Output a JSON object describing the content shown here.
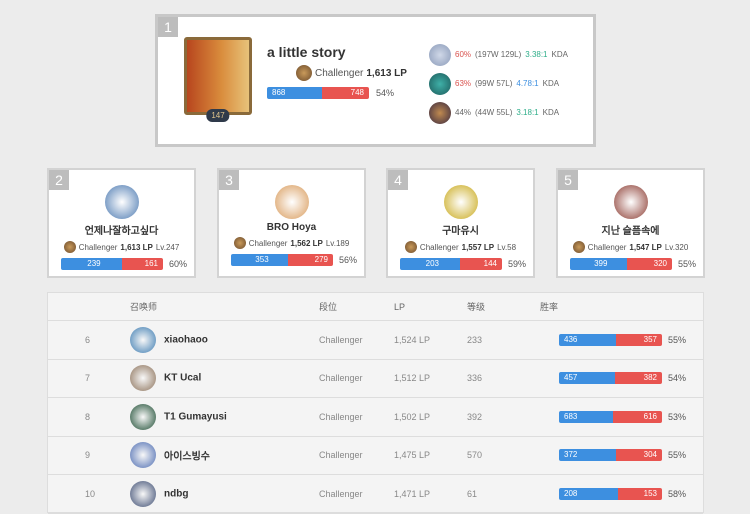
{
  "top_player": {
    "rank": "1",
    "name": "a little story",
    "level": "147",
    "tier": "Challenger",
    "lp": "1,613 LP",
    "wins": 868,
    "losses": 748,
    "winrate": "54%",
    "champions": [
      {
        "winrate": "60%",
        "record": "(197W 129L)",
        "kda": "3.38:1",
        "kda_label": "KDA",
        "colors": [
          "#8a9ab8",
          "#d0d8e8"
        ]
      },
      {
        "winrate": "63%",
        "record": "(99W 57L)",
        "kda": "4.78:1",
        "kda_label": "KDA",
        "colors": [
          "#1c5a5a",
          "#3fb0a8"
        ]
      },
      {
        "winrate": "44%",
        "record": "(44W 55L)",
        "kda": "3.18:1",
        "kda_label": "KDA",
        "colors": [
          "#3a2a40",
          "#c08a50"
        ]
      }
    ]
  },
  "cards": [
    {
      "rank": "2",
      "name": "언제나잘하고싶다",
      "tier": "Challenger",
      "lp": "1,613 LP",
      "level": "Lv.247",
      "wins": 239,
      "losses": 161,
      "winrate": "60%",
      "color": "#4a78b0"
    },
    {
      "rank": "3",
      "name": "BRO Hoya",
      "tier": "Challenger",
      "lp": "1,562 LP",
      "level": "Lv.189",
      "wins": 353,
      "losses": 279,
      "winrate": "56%",
      "color": "#d89a5a"
    },
    {
      "rank": "4",
      "name": "구마유시",
      "tier": "Challenger",
      "lp": "1,557 LP",
      "level": "Lv.58",
      "wins": 203,
      "losses": 144,
      "winrate": "59%",
      "color": "#c8a818"
    },
    {
      "rank": "5",
      "name": "지난 슬픔속에",
      "tier": "Challenger",
      "lp": "1,547 LP",
      "level": "Lv.320",
      "wins": 399,
      "losses": 320,
      "winrate": "55%",
      "color": "#8a3a30"
    }
  ],
  "table": {
    "headers": {
      "summoner": "召唤师",
      "tier": "段位",
      "lp": "LP",
      "level": "等级",
      "winrate": "胜率"
    },
    "rows": [
      {
        "rank": "6",
        "name": "xiaohaoo",
        "tier": "Challenger",
        "lp": "1,524 LP",
        "level": "233",
        "wins": 436,
        "losses": 357,
        "winrate": "55%",
        "color": "#3a7ab0"
      },
      {
        "rank": "7",
        "name": "KT Ucal",
        "tier": "Challenger",
        "lp": "1,512 LP",
        "level": "336",
        "wins": 457,
        "losses": 382,
        "winrate": "54%",
        "color": "#8a7058"
      },
      {
        "rank": "8",
        "name": "T1 Gumayusi",
        "tier": "Challenger",
        "lp": "1,502 LP",
        "level": "392",
        "wins": 683,
        "losses": 616,
        "winrate": "53%",
        "color": "#1a4a30"
      },
      {
        "rank": "9",
        "name": "아이스빙수",
        "tier": "Challenger",
        "lp": "1,475 LP",
        "level": "570",
        "wins": 372,
        "losses": 304,
        "winrate": "55%",
        "color": "#4a6ab0"
      },
      {
        "rank": "10",
        "name": "ndbg",
        "tier": "Challenger",
        "lp": "1,471 LP",
        "level": "61",
        "wins": 208,
        "losses": 153,
        "winrate": "58%",
        "color": "#3a4a70"
      }
    ]
  }
}
